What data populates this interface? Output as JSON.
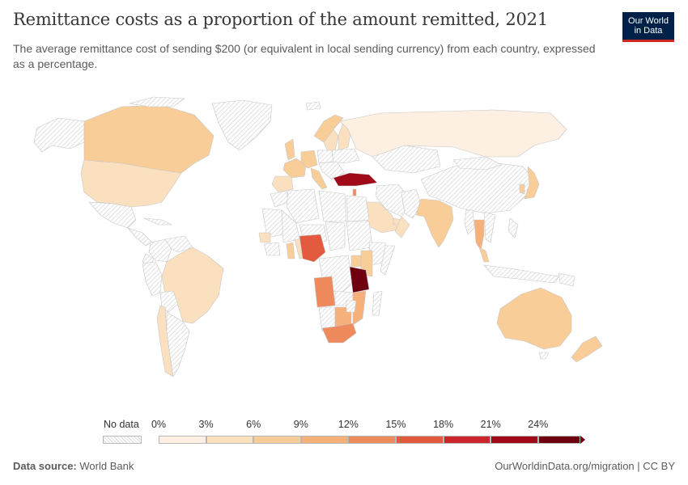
{
  "header": {
    "title": "Remittance costs as a proportion of the amount remitted, 2021",
    "subtitle": "The average remittance cost of sending $200 (or equivalent in local sending currency) from each country, expressed as a percentage."
  },
  "logo": {
    "line1": "Our World",
    "line2": "in Data",
    "bg_color": "#002147",
    "accent_color": "#ce261e"
  },
  "legend": {
    "no_data_label": "No data",
    "ticks": [
      "0%",
      "3%",
      "6%",
      "9%",
      "12%",
      "15%",
      "18%",
      "21%",
      "24%"
    ],
    "bin_colors": [
      "#fdf0e2",
      "#fbe0bf",
      "#f9cd98",
      "#f6b07a",
      "#ef8a5c",
      "#e45a3e",
      "#c8262a",
      "#a00a18",
      "#6e0010"
    ]
  },
  "footer": {
    "source_label": "Data source:",
    "source_value": "World Bank",
    "url": "OurWorldinData.org/migration | CC BY"
  },
  "chart_data": {
    "type": "choropleth",
    "indicator": "Remittance cost as % of amount remitted",
    "year": 2021,
    "unit": "%",
    "color_scale_breaks": [
      0,
      3,
      6,
      9,
      12,
      15,
      18,
      21,
      24
    ],
    "no_data_pattern": "hatched",
    "regions": [
      {
        "name": "Canada",
        "bin": 2
      },
      {
        "name": "United States",
        "bin": 1
      },
      {
        "name": "Mexico",
        "bin": null
      },
      {
        "name": "Brazil",
        "bin": 1
      },
      {
        "name": "Chile",
        "bin": 1
      },
      {
        "name": "Argentina",
        "bin": null
      },
      {
        "name": "Russia",
        "bin": 0
      },
      {
        "name": "China",
        "bin": null
      },
      {
        "name": "India",
        "bin": 2
      },
      {
        "name": "Japan",
        "bin": 2
      },
      {
        "name": "South Korea",
        "bin": 2
      },
      {
        "name": "Thailand",
        "bin": 3
      },
      {
        "name": "Malaysia",
        "bin": 2
      },
      {
        "name": "Singapore",
        "bin": 2
      },
      {
        "name": "Indonesia",
        "bin": null
      },
      {
        "name": "Australia",
        "bin": 2
      },
      {
        "name": "New Zealand",
        "bin": 2
      },
      {
        "name": "Turkey",
        "bin": 7
      },
      {
        "name": "Lebanon",
        "bin": 4
      },
      {
        "name": "Saudi Arabia",
        "bin": 1
      },
      {
        "name": "United Arab Emirates",
        "bin": 1
      },
      {
        "name": "Kuwait",
        "bin": 1
      },
      {
        "name": "Qatar",
        "bin": 1
      },
      {
        "name": "Oman",
        "bin": 1
      },
      {
        "name": "Pakistan",
        "bin": null
      },
      {
        "name": "United Kingdom",
        "bin": 2
      },
      {
        "name": "France",
        "bin": 2
      },
      {
        "name": "Spain",
        "bin": 1
      },
      {
        "name": "Germany",
        "bin": 2
      },
      {
        "name": "Italy",
        "bin": 2
      },
      {
        "name": "Norway",
        "bin": 2
      },
      {
        "name": "Sweden",
        "bin": 1
      },
      {
        "name": "Finland",
        "bin": 1
      },
      {
        "name": "Nigeria",
        "bin": 1
      },
      {
        "name": "Ghana",
        "bin": 2
      },
      {
        "name": "Senegal",
        "bin": 1
      },
      {
        "name": "Cameroon",
        "bin": 5
      },
      {
        "name": "Angola",
        "bin": 4
      },
      {
        "name": "Tanzania",
        "bin": 8
      },
      {
        "name": "Kenya",
        "bin": 2
      },
      {
        "name": "Uganda",
        "bin": 2
      },
      {
        "name": "South Africa",
        "bin": 4
      },
      {
        "name": "Botswana",
        "bin": 3
      },
      {
        "name": "Mozambique",
        "bin": 3
      }
    ]
  }
}
